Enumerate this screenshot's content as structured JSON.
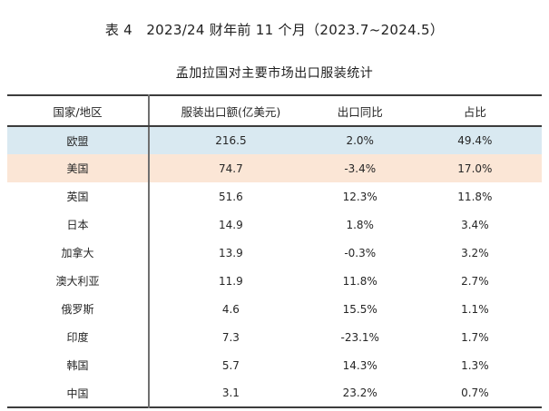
{
  "title": "表 4　2023/24 财年前 11 个月（2023.7~2024.5）",
  "subtitle": "孟加拉国对主要市场出口服装统计",
  "table": {
    "columns": [
      "国家/地区",
      "服装出口额(亿美元)",
      "出口同比",
      "占比"
    ],
    "rows": [
      {
        "region": "欧盟",
        "export": "216.5",
        "yoy": "2.0%",
        "share": "49.4%",
        "highlight": "blue"
      },
      {
        "region": "美国",
        "export": "74.7",
        "yoy": "-3.4%",
        "share": "17.0%",
        "highlight": "peach"
      },
      {
        "region": "英国",
        "export": "51.6",
        "yoy": "12.3%",
        "share": "11.8%",
        "highlight": "none"
      },
      {
        "region": "日本",
        "export": "14.9",
        "yoy": "1.8%",
        "share": "3.4%",
        "highlight": "none"
      },
      {
        "region": "加拿大",
        "export": "13.9",
        "yoy": "-0.3%",
        "share": "3.2%",
        "highlight": "none"
      },
      {
        "region": "澳大利亚",
        "export": "11.9",
        "yoy": "11.8%",
        "share": "2.7%",
        "highlight": "none"
      },
      {
        "region": "俄罗斯",
        "export": "4.6",
        "yoy": "15.5%",
        "share": "1.1%",
        "highlight": "none"
      },
      {
        "region": "印度",
        "export": "7.3",
        "yoy": "-23.1%",
        "share": "1.7%",
        "highlight": "none"
      },
      {
        "region": "韩国",
        "export": "5.7",
        "yoy": "14.3%",
        "share": "1.3%",
        "highlight": "none"
      },
      {
        "region": "中国",
        "export": "3.1",
        "yoy": "23.2%",
        "share": "0.7%",
        "highlight": "none"
      }
    ]
  },
  "colors": {
    "highlight_blue": "#d9e9f1",
    "highlight_peach": "#fbe6d6",
    "border_dark": "#3c3c3c",
    "divider_gray": "#6f6f6f",
    "text": "#262626"
  }
}
